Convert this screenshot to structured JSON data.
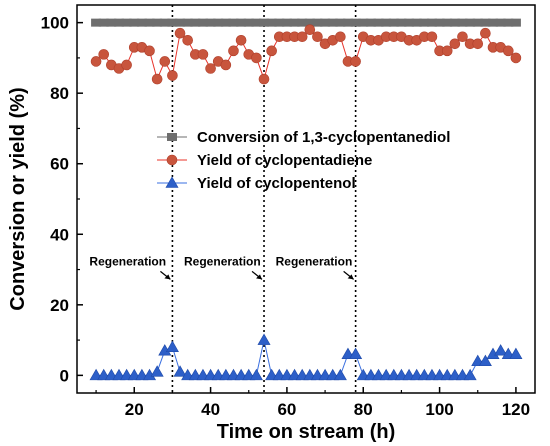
{
  "chart_data": {
    "type": "line",
    "xlabel": "Time on stream (h)",
    "ylabel": "Conversion or yield (%)",
    "xlim": [
      5,
      125
    ],
    "ylim": [
      -5,
      105
    ],
    "xticks": [
      20,
      40,
      60,
      80,
      100,
      120
    ],
    "yticks": [
      0,
      20,
      40,
      60,
      80,
      100
    ],
    "grid": false,
    "legend_position": "center-right",
    "regeneration_lines": [
      30,
      54,
      78
    ],
    "series": [
      {
        "name": "Conversion of 1,3-cyclopentanediol",
        "marker": "square",
        "color": "#6e6e6e",
        "line_color": "#6e6e6e",
        "x": [
          10,
          12,
          14,
          16,
          18,
          20,
          22,
          24,
          26,
          28,
          30,
          32,
          34,
          36,
          38,
          40,
          42,
          44,
          46,
          48,
          50,
          52,
          54,
          56,
          58,
          60,
          62,
          64,
          66,
          68,
          70,
          72,
          74,
          76,
          78,
          80,
          82,
          84,
          86,
          88,
          90,
          92,
          94,
          96,
          98,
          100,
          102,
          104,
          106,
          108,
          110,
          112,
          114,
          116,
          118,
          120
        ],
        "y": [
          100,
          100,
          100,
          100,
          100,
          100,
          100,
          100,
          100,
          100,
          100,
          100,
          100,
          100,
          100,
          100,
          100,
          100,
          100,
          100,
          100,
          100,
          100,
          100,
          100,
          100,
          100,
          100,
          100,
          100,
          100,
          100,
          100,
          100,
          100,
          100,
          100,
          100,
          100,
          100,
          100,
          100,
          100,
          100,
          100,
          100,
          100,
          100,
          100,
          100,
          100,
          100,
          100,
          100,
          100,
          100
        ]
      },
      {
        "name": "Yield of cyclopentadiene",
        "marker": "circle",
        "color": "#c8553d",
        "line_color": "#e8332a",
        "x": [
          10,
          12,
          14,
          16,
          18,
          20,
          22,
          24,
          26,
          28,
          30,
          32,
          34,
          36,
          38,
          40,
          42,
          44,
          46,
          48,
          50,
          52,
          54,
          56,
          58,
          60,
          62,
          64,
          66,
          68,
          70,
          72,
          74,
          76,
          78,
          80,
          82,
          84,
          86,
          88,
          90,
          92,
          94,
          96,
          98,
          100,
          102,
          104,
          106,
          108,
          110,
          112,
          114,
          116,
          118,
          120
        ],
        "y": [
          89,
          91,
          88,
          87,
          88,
          93,
          93,
          92,
          84,
          89,
          85,
          97,
          95,
          91,
          91,
          87,
          89,
          88,
          92,
          95,
          91,
          90,
          84,
          92,
          96,
          96,
          96,
          96,
          98,
          96,
          94,
          95,
          96,
          89,
          89,
          96,
          95,
          95,
          96,
          96,
          96,
          95,
          95,
          96,
          96,
          92,
          92,
          94,
          96,
          94,
          94,
          97,
          93,
          93,
          92,
          90
        ]
      },
      {
        "name": "Yield of cyclopentenol",
        "marker": "triangle",
        "color": "#2d5fc8",
        "line_color": "#3a6fe0",
        "x": [
          10,
          12,
          14,
          16,
          18,
          20,
          22,
          24,
          26,
          28,
          30,
          32,
          34,
          36,
          38,
          40,
          42,
          44,
          46,
          48,
          50,
          52,
          54,
          56,
          58,
          60,
          62,
          64,
          66,
          68,
          70,
          72,
          74,
          76,
          78,
          80,
          82,
          84,
          86,
          88,
          90,
          92,
          94,
          96,
          98,
          100,
          102,
          104,
          106,
          108,
          110,
          112,
          114,
          116,
          118,
          120
        ],
        "y": [
          0,
          0,
          0,
          0,
          0,
          0,
          0,
          0,
          1,
          7,
          8,
          1,
          0,
          0,
          0,
          0,
          0,
          0,
          0,
          0,
          0,
          0,
          10,
          0,
          0,
          0,
          0,
          0,
          0,
          0,
          0,
          0,
          0,
          6,
          6,
          0,
          0,
          0,
          0,
          0,
          0,
          0,
          0,
          0,
          0,
          0,
          0,
          0,
          0,
          0,
          4,
          4,
          6,
          7,
          6,
          6
        ]
      }
    ],
    "annotations": [
      {
        "text": "Regeneration",
        "target_x": 30
      },
      {
        "text": "Regeneration",
        "target_x": 54
      },
      {
        "text": "Regeneration",
        "target_x": 78
      }
    ]
  }
}
